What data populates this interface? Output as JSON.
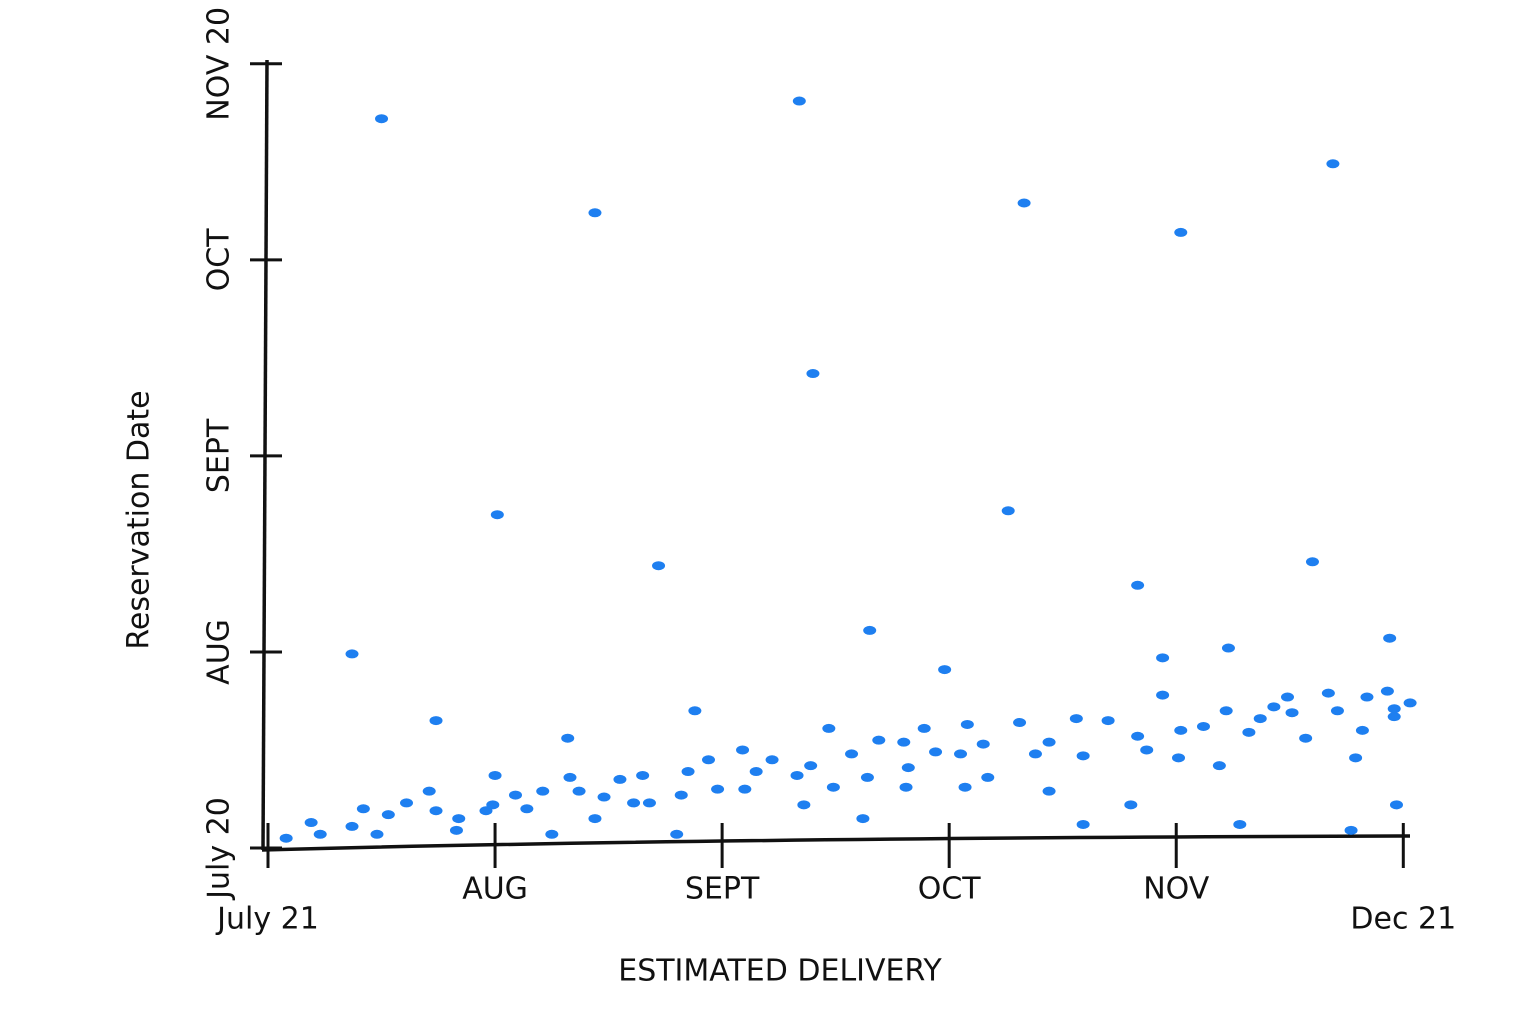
{
  "chart_data": {
    "type": "scatter",
    "x_label": "ESTIMATED DELIVERY",
    "y_label": "Reservation Date",
    "color": "#1e7ff0",
    "xlim": [
      0,
      5.1
    ],
    "ylim": [
      0,
      4.05
    ],
    "xticks": [
      {
        "value": 0,
        "label": "July 21"
      },
      {
        "value": 1,
        "label": "AUG"
      },
      {
        "value": 2,
        "label": "SEPT"
      },
      {
        "value": 3,
        "label": "OCT"
      },
      {
        "value": 4,
        "label": "NOV"
      },
      {
        "value": 5,
        "label": "Dec 21"
      }
    ],
    "yticks": [
      {
        "value": 0,
        "label": "July 20"
      },
      {
        "value": 1,
        "label": "AUG"
      },
      {
        "value": 2,
        "label": "SEPT"
      },
      {
        "value": 3,
        "label": "OCT"
      },
      {
        "value": 4,
        "label": "NOV 20"
      }
    ],
    "x": [
      0.08,
      0.19,
      0.23,
      0.37,
      0.42,
      0.48,
      0.53,
      0.61,
      0.71,
      0.74,
      0.84,
      0.83,
      0.96,
      0.99,
      1.0,
      1.09,
      1.14,
      1.21,
      1.25,
      1.33,
      1.37,
      1.44,
      1.48,
      1.55,
      1.61,
      1.65,
      1.68,
      1.8,
      1.82,
      1.85,
      1.94,
      1.98,
      2.09,
      2.1,
      2.15,
      2.22,
      2.33,
      2.36,
      2.39,
      2.47,
      2.49,
      2.57,
      2.62,
      2.64,
      2.69,
      2.8,
      2.81,
      2.82,
      2.89,
      2.94,
      3.05,
      3.08,
      3.07,
      3.15,
      3.17,
      3.31,
      3.38,
      3.44,
      3.44,
      3.56,
      3.59,
      3.59,
      3.7,
      3.8,
      3.83,
      3.87,
      3.94,
      4.01,
      4.02,
      4.12,
      4.19,
      4.22,
      4.28,
      4.32,
      4.37,
      4.43,
      4.49,
      4.51,
      4.57,
      4.67,
      4.71,
      4.77,
      4.79,
      4.82,
      4.84,
      4.93,
      4.96,
      4.97,
      5.03,
      4.96,
      0.37,
      0.5,
      0.74,
      1.32,
      1.44,
      1.01,
      1.72,
      1.88,
      2.34,
      2.4,
      2.65,
      2.98,
      3.26,
      3.33,
      3.83,
      3.94,
      4.02,
      4.23,
      4.6,
      4.69,
      4.94
    ],
    "y": [
      0.05,
      0.13,
      0.07,
      0.11,
      0.2,
      0.07,
      0.17,
      0.23,
      0.29,
      0.19,
      0.15,
      0.09,
      0.19,
      0.22,
      0.37,
      0.27,
      0.2,
      0.29,
      0.07,
      0.36,
      0.29,
      0.15,
      0.26,
      0.35,
      0.23,
      0.37,
      0.23,
      0.07,
      0.27,
      0.39,
      0.45,
      0.3,
      0.5,
      0.3,
      0.39,
      0.45,
      0.37,
      0.22,
      0.42,
      0.61,
      0.31,
      0.48,
      0.15,
      0.36,
      0.55,
      0.54,
      0.31,
      0.41,
      0.61,
      0.49,
      0.48,
      0.63,
      0.31,
      0.53,
      0.36,
      0.64,
      0.48,
      0.29,
      0.54,
      0.66,
      0.47,
      0.12,
      0.65,
      0.22,
      0.57,
      0.5,
      0.78,
      0.46,
      0.6,
      0.62,
      0.42,
      0.7,
      0.12,
      0.59,
      0.66,
      0.72,
      0.77,
      0.69,
      0.56,
      0.79,
      0.7,
      0.09,
      0.46,
      0.6,
      0.77,
      0.8,
      0.71,
      0.22,
      0.74,
      0.67,
      0.99,
      3.72,
      0.65,
      0.56,
      3.24,
      1.7,
      1.44,
      0.7,
      3.81,
      2.42,
      1.11,
      0.91,
      1.72,
      3.29,
      1.34,
      0.97,
      3.14,
      1.02,
      1.46,
      3.49,
      1.07
    ]
  }
}
